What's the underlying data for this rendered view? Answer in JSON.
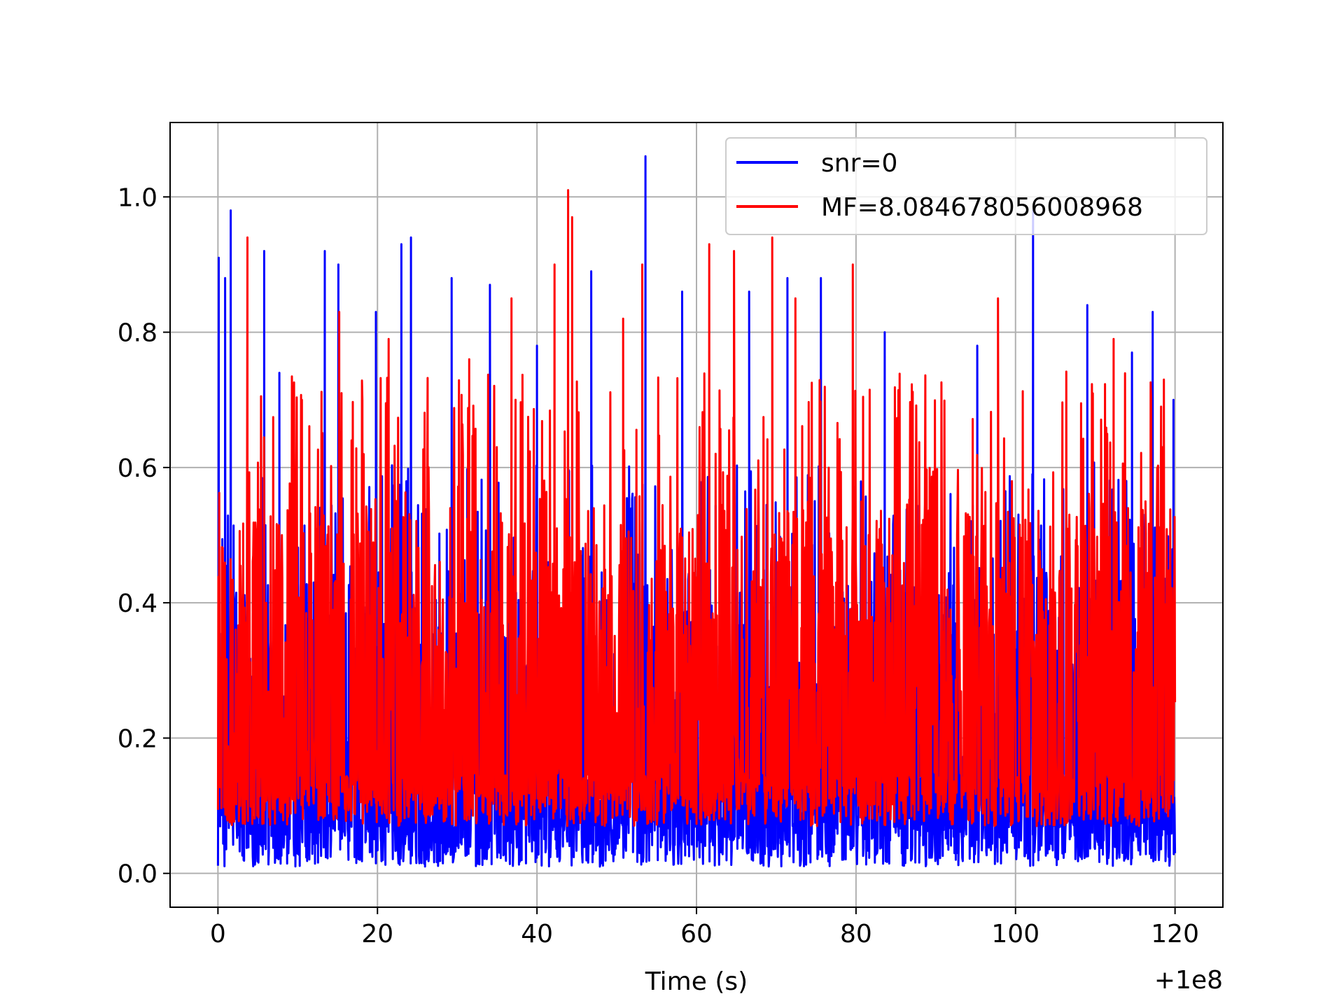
{
  "chart_data": {
    "type": "line",
    "title": "",
    "xlabel": "Time (s)",
    "ylabel": "",
    "x_offset_label": "+1e8",
    "xlim": [
      -6,
      126
    ],
    "ylim": [
      -0.05,
      1.11
    ],
    "x_ticks": [
      0,
      20,
      40,
      60,
      80,
      100,
      120
    ],
    "x_tick_labels": [
      "0",
      "20",
      "40",
      "60",
      "80",
      "100",
      "120"
    ],
    "y_ticks": [
      0.0,
      0.2,
      0.4,
      0.6,
      0.8,
      1.0
    ],
    "y_tick_labels": [
      "0.0",
      "0.2",
      "0.4",
      "0.6",
      "0.8",
      "1.0"
    ],
    "grid": true,
    "legend_position": "top-right",
    "series": [
      {
        "name": "snr=0",
        "color": "#0000ff",
        "x_range": [
          0,
          120
        ],
        "baseline": 0.01,
        "typical_high": 0.45,
        "peaks": [
          {
            "x": 0.1,
            "y": 0.91
          },
          {
            "x": 0.9,
            "y": 0.88
          },
          {
            "x": 1.6,
            "y": 0.98
          },
          {
            "x": 5.8,
            "y": 0.92
          },
          {
            "x": 7.7,
            "y": 0.74
          },
          {
            "x": 13.4,
            "y": 0.92
          },
          {
            "x": 15.1,
            "y": 0.9
          },
          {
            "x": 19.8,
            "y": 0.83
          },
          {
            "x": 23.0,
            "y": 0.93
          },
          {
            "x": 24.2,
            "y": 0.94
          },
          {
            "x": 29.3,
            "y": 0.88
          },
          {
            "x": 34.1,
            "y": 0.87
          },
          {
            "x": 40.0,
            "y": 0.78
          },
          {
            "x": 46.8,
            "y": 0.89
          },
          {
            "x": 53.6,
            "y": 1.06
          },
          {
            "x": 58.2,
            "y": 0.86
          },
          {
            "x": 66.6,
            "y": 0.86
          },
          {
            "x": 71.4,
            "y": 0.88
          },
          {
            "x": 75.6,
            "y": 0.88
          },
          {
            "x": 83.6,
            "y": 0.8
          },
          {
            "x": 95.2,
            "y": 0.78
          },
          {
            "x": 102.2,
            "y": 0.98
          },
          {
            "x": 109.0,
            "y": 0.84
          },
          {
            "x": 114.6,
            "y": 0.77
          },
          {
            "x": 117.2,
            "y": 0.83
          },
          {
            "x": 119.8,
            "y": 0.7
          }
        ]
      },
      {
        "name": "MF=8.084678056008968",
        "color": "#ff0000",
        "x_range": [
          0,
          120
        ],
        "baseline": 0.07,
        "typical_high": 0.55,
        "peaks": [
          {
            "x": 3.7,
            "y": 0.94
          },
          {
            "x": 9.4,
            "y": 0.72
          },
          {
            "x": 15.2,
            "y": 0.83
          },
          {
            "x": 21.4,
            "y": 0.79
          },
          {
            "x": 31.5,
            "y": 0.76
          },
          {
            "x": 36.8,
            "y": 0.85
          },
          {
            "x": 42.2,
            "y": 0.9
          },
          {
            "x": 43.9,
            "y": 1.01
          },
          {
            "x": 44.4,
            "y": 0.97
          },
          {
            "x": 50.8,
            "y": 0.82
          },
          {
            "x": 53.2,
            "y": 0.9
          },
          {
            "x": 61.6,
            "y": 0.93
          },
          {
            "x": 64.7,
            "y": 0.92
          },
          {
            "x": 69.5,
            "y": 0.94
          },
          {
            "x": 72.4,
            "y": 0.85
          },
          {
            "x": 79.6,
            "y": 0.9
          },
          {
            "x": 97.8,
            "y": 0.85
          },
          {
            "x": 112.3,
            "y": 0.79
          },
          {
            "x": 118.6,
            "y": 0.73
          }
        ]
      }
    ]
  }
}
